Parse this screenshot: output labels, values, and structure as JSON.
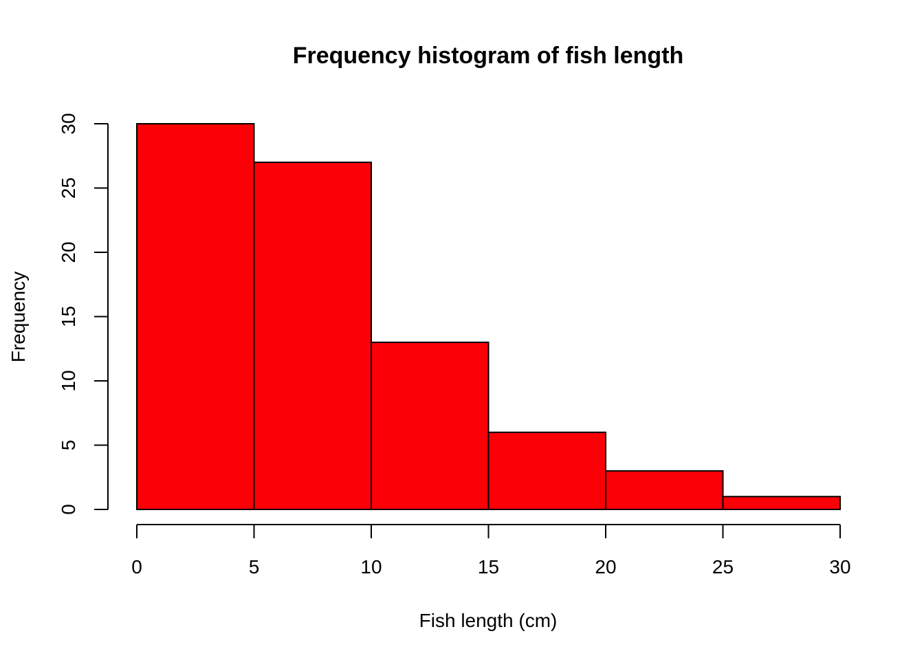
{
  "chart_data": {
    "type": "bar",
    "title": "Frequency histogram of fish length",
    "xlabel": "Fish length (cm)",
    "ylabel": "Frequency",
    "bins": [
      {
        "from": 0,
        "to": 5,
        "count": 30
      },
      {
        "from": 5,
        "to": 10,
        "count": 27
      },
      {
        "from": 10,
        "to": 15,
        "count": 13
      },
      {
        "from": 15,
        "to": 20,
        "count": 6
      },
      {
        "from": 20,
        "to": 25,
        "count": 3
      },
      {
        "from": 25,
        "to": 30,
        "count": 1
      }
    ],
    "x_ticks": [
      0,
      5,
      10,
      15,
      20,
      25,
      30
    ],
    "y_ticks": [
      0,
      5,
      10,
      15,
      20,
      25,
      30
    ],
    "xlim": [
      0,
      30
    ],
    "ylim": [
      0,
      30
    ],
    "bar_color": "#fb0007",
    "grid": false,
    "legend": false
  }
}
